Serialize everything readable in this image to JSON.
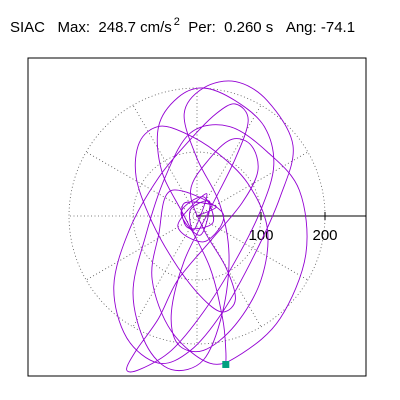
{
  "header": {
    "station": "SIAC",
    "max_label": "Max:",
    "max_value": "248.7 cm/s",
    "max_unit_exponent": "2",
    "period_label": "Per:",
    "period_value": "0.260 s",
    "angle_label": "Ang:",
    "angle_value": "-74.1"
  },
  "chart_data": {
    "type": "scatter",
    "title": "SIAC  Max: 248.7 cm/s2  Per: 0.260 s  Ang: -74.1",
    "xlabel": "",
    "ylabel": "",
    "radial_ticks": [
      100,
      200
    ],
    "radial_tick_labels": [
      "100",
      "200"
    ],
    "rlim": [
      0,
      250
    ],
    "grid_rings": [
      100,
      200
    ],
    "radial_spoke_step_deg": 30,
    "polar_grid": true,
    "trace_color": "#9400d3",
    "end_marker_color": "#00a080",
    "trace": {
      "x": [
        0,
        30,
        -20,
        -15,
        25,
        10,
        -25,
        5,
        20,
        -10,
        -5,
        15,
        -30,
        12,
        40,
        -40,
        -60,
        -70,
        -40,
        20,
        70,
        130,
        170,
        160,
        110,
        50,
        -10,
        -50,
        -80,
        -100,
        -80,
        -40,
        10,
        40,
        50,
        35,
        0,
        -20,
        10,
        60,
        110,
        150,
        130,
        90,
        40,
        -10,
        -60,
        -110,
        -130,
        -105,
        -60,
        -10,
        30,
        60,
        80,
        60,
        20,
        -20,
        -40,
        -30,
        10,
        60,
        100,
        110,
        80,
        30,
        -20,
        -60,
        -90,
        -95,
        -70,
        -30,
        10,
        40,
        60,
        45,
        10,
        -10,
        20,
        55,
        85,
        95,
        70,
        20,
        -30,
        -60,
        -95,
        -110,
        -90,
        -40,
        10,
        60,
        100,
        120,
        105,
        60,
        10,
        -30,
        -60,
        -55,
        -20,
        20,
        40,
        45,
        45
      ],
      "y": [
        0,
        15,
        20,
        -18,
        -10,
        30,
        5,
        -30,
        22,
        10,
        -22,
        35,
        -15,
        -40,
        5,
        40,
        -30,
        -100,
        -180,
        -230,
        -215,
        -160,
        -60,
        40,
        100,
        140,
        130,
        60,
        -30,
        -120,
        -200,
        -240,
        -225,
        -150,
        -60,
        20,
        90,
        160,
        200,
        210,
        180,
        110,
        30,
        -60,
        -150,
        -210,
        -230,
        -190,
        -110,
        -20,
        60,
        120,
        160,
        175,
        150,
        90,
        10,
        -70,
        -150,
        -200,
        -210,
        -170,
        -100,
        -20,
        50,
        100,
        130,
        140,
        115,
        60,
        -10,
        -80,
        -130,
        -150,
        -130,
        -80,
        -20,
        40,
        90,
        120,
        110,
        70,
        20,
        -40,
        -100,
        -160,
        -210,
        -240,
        -240,
        -210,
        -150,
        -70,
        10,
        80,
        140,
        180,
        200,
        185,
        140,
        70,
        0,
        -80,
        -160,
        -210,
        -232
      ]
    },
    "end_point": {
      "x": 45,
      "y": -232
    }
  }
}
